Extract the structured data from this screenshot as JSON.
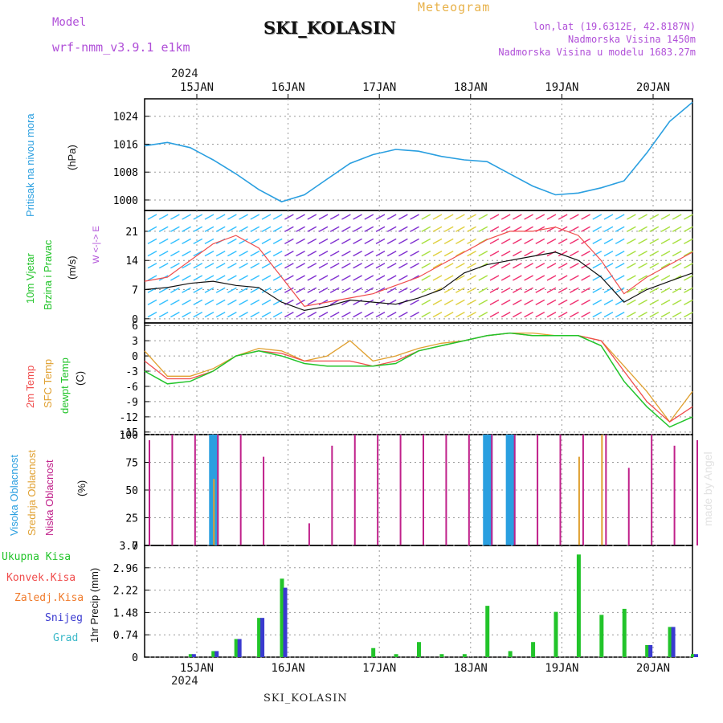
{
  "header": {
    "model_label": "Model",
    "model_name": "wrf-nmm_v3.9.1 e1km",
    "station": "SKI_KOLASIN",
    "meteogram_title": "Meteogram",
    "lonlat": "lon,lat (19.6312E, 42.8187N)",
    "elevation": "Nadmorska Visina 1450m",
    "elevation_model": "Nadmorska Visina u modelu 1683.27m",
    "year_top": "2024",
    "year_bottom": "2024",
    "footer_station": "SKI_KOLASIN",
    "watermark": "made by Angel"
  },
  "colors": {
    "pressure": "#2a9fe0",
    "wind_speed": "#111111",
    "wind_gust": "#f04c4c",
    "t2m": "#f04c4c",
    "sfc": "#e0a030",
    "dewpt": "#22c42a",
    "high_cloud": "#2a9fe0",
    "mid_cloud": "#e0a030",
    "low_cloud": "#c0208a",
    "total_precip": "#22c42a",
    "conv_precip": "#f04c4c",
    "freezing": "#f07a2a",
    "snow": "#3a3ad0",
    "graupel": "#3ab8c8"
  },
  "chart_data": [
    {
      "type": "line",
      "panel": "pressure",
      "ylabel_lines": [
        "Pritisak na nivou mora",
        "(hPa)"
      ],
      "x_ticks": [
        "15JAN",
        "16JAN",
        "17JAN",
        "18JAN",
        "19JAN",
        "20JAN"
      ],
      "yticks": [
        1000,
        1008,
        1016,
        1024
      ],
      "ylim": [
        997,
        1029
      ],
      "x_days": [
        0.0,
        0.25,
        0.5,
        0.75,
        1.0,
        1.25,
        1.5,
        1.75,
        2.0,
        2.25,
        2.5,
        2.75,
        3.0,
        3.25,
        3.5,
        3.75,
        4.0,
        4.25,
        4.5,
        4.75,
        5.0,
        5.25,
        5.5,
        5.75,
        6.0
      ],
      "series": [
        {
          "values": [
            1015.5,
            1016.5,
            1015.0,
            1011.5,
            1007.5,
            1003.0,
            999.5,
            1001.5,
            1006.0,
            1010.5,
            1013.0,
            1014.5,
            1014.0,
            1012.5,
            1011.5,
            1011.0,
            1007.5,
            1004.0,
            1001.5,
            1002.0,
            1003.5,
            1005.5,
            1013.5,
            1022.5,
            1028.0
          ]
        }
      ],
      "grid": true
    },
    {
      "type": "line",
      "panel": "wind",
      "ylabel_lines": [
        "10m Vjetar",
        "Brzina i Pravac",
        "(m/s)"
      ],
      "compass_label": "W <-|-> E",
      "yticks": [
        0,
        7,
        14,
        21
      ],
      "ylim": [
        -1,
        26
      ],
      "x_days": [
        0.0,
        0.25,
        0.5,
        0.75,
        1.0,
        1.25,
        1.5,
        1.75,
        2.0,
        2.25,
        2.5,
        2.75,
        3.0,
        3.25,
        3.5,
        3.75,
        4.0,
        4.25,
        4.5,
        4.75,
        5.0,
        5.25,
        5.5,
        5.75,
        6.0
      ],
      "series": [
        {
          "values": [
            7,
            7.5,
            8.5,
            9,
            8,
            7.5,
            4,
            2,
            3,
            4.5,
            4,
            3.5,
            5,
            7,
            11,
            13,
            14,
            15,
            16,
            14,
            10,
            4,
            7,
            9,
            11
          ]
        },
        {
          "values": [
            9,
            10,
            14,
            18,
            20,
            17,
            10,
            3,
            4,
            5,
            6,
            8,
            10,
            13,
            16,
            19,
            21,
            21,
            22,
            20,
            14,
            6,
            10,
            13,
            16
          ]
        }
      ],
      "grid": true
    },
    {
      "type": "line",
      "panel": "temperature",
      "ylabel_lines": [
        "2m Temp",
        "SFC Temp",
        "dewpt Temp",
        "(C)"
      ],
      "yticks": [
        -15,
        -12,
        -9,
        -6,
        -3,
        0,
        3,
        6
      ],
      "ylim": [
        -15.5,
        6.5
      ],
      "x_days": [
        0.0,
        0.25,
        0.5,
        0.75,
        1.0,
        1.25,
        1.5,
        1.75,
        2.0,
        2.25,
        2.5,
        2.75,
        3.0,
        3.25,
        3.5,
        3.75,
        4.0,
        4.25,
        4.5,
        4.75,
        5.0,
        5.25,
        5.5,
        5.75,
        6.0
      ],
      "series": [
        {
          "values": [
            -1,
            -4.5,
            -4.5,
            -3,
            0,
            1,
            0.5,
            -1,
            -1,
            -1,
            -2,
            -1,
            1,
            2,
            3,
            4,
            4.5,
            4,
            4,
            4,
            3,
            -3,
            -9,
            -13,
            -10
          ]
        },
        {
          "values": [
            1,
            -4,
            -4,
            -2.5,
            0,
            1.5,
            1,
            -1,
            0,
            3,
            -1,
            0,
            1.5,
            2.5,
            3,
            4,
            4.5,
            4.5,
            4,
            4,
            3,
            -2,
            -7,
            -13,
            -7
          ]
        },
        {
          "values": [
            -3,
            -5.5,
            -5,
            -3,
            0,
            1,
            0,
            -1.5,
            -2,
            -2,
            -2,
            -1.5,
            1,
            2,
            3,
            4,
            4.5,
            4,
            4,
            4,
            2,
            -5,
            -10,
            -14,
            -12
          ]
        }
      ],
      "grid": true
    },
    {
      "type": "bar",
      "panel": "clouds",
      "ylabel_lines": [
        "Visoka Oblacnost",
        "Srednja Oblacnost",
        "Niska Oblacnost",
        "(%)"
      ],
      "yticks": [
        0,
        25,
        50,
        75,
        100
      ],
      "ylim": [
        0,
        100
      ],
      "x_days": [
        0.0,
        0.25,
        0.5,
        0.75,
        1.0,
        1.25,
        1.5,
        1.75,
        2.0,
        2.25,
        2.5,
        2.75,
        3.0,
        3.25,
        3.5,
        3.75,
        4.0,
        4.25,
        4.5,
        4.75,
        5.0,
        5.25,
        5.5,
        5.75,
        6.0
      ],
      "series": [
        {
          "name": "Visoka Oblacnost",
          "values": [
            0,
            0,
            0,
            100,
            0,
            0,
            0,
            0,
            0,
            0,
            0,
            0,
            0,
            0,
            0,
            100,
            100,
            0,
            0,
            0,
            0,
            0,
            0,
            0,
            0
          ]
        },
        {
          "name": "Srednja Oblacnost",
          "values": [
            0,
            0,
            0,
            60,
            0,
            0,
            0,
            0,
            0,
            0,
            0,
            0,
            0,
            0,
            0,
            0,
            0,
            0,
            0,
            80,
            100,
            0,
            0,
            0,
            0
          ]
        },
        {
          "name": "Niska Oblacnost",
          "values": [
            95,
            100,
            100,
            100,
            100,
            80,
            0,
            20,
            90,
            100,
            100,
            100,
            100,
            100,
            100,
            100,
            100,
            100,
            100,
            100,
            100,
            70,
            100,
            90,
            95
          ]
        }
      ],
      "grid": true
    },
    {
      "type": "bar",
      "panel": "precip",
      "ylabel_lines": [
        "1hr Precip (mm)"
      ],
      "legend": [
        "Ukupna Kisa",
        "Konvek.Kisa",
        "Zaledj.Kisa",
        "Snijeg",
        "Grad"
      ],
      "yticks": [
        0,
        0.74,
        1.48,
        2.22,
        2.96,
        3.7
      ],
      "ylim": [
        0,
        3.7
      ],
      "x_ticks": [
        "15JAN",
        "16JAN",
        "17JAN",
        "18JAN",
        "19JAN",
        "20JAN"
      ],
      "x_days": [
        0.0,
        0.25,
        0.5,
        0.75,
        1.0,
        1.25,
        1.5,
        1.75,
        2.0,
        2.25,
        2.5,
        2.75,
        3.0,
        3.25,
        3.5,
        3.75,
        4.0,
        4.25,
        4.5,
        4.75,
        5.0,
        5.25,
        5.5,
        5.75,
        6.0
      ],
      "series": [
        {
          "name": "Ukupna Kisa",
          "values": [
            0,
            0,
            0.1,
            0.2,
            0.6,
            1.3,
            2.6,
            0,
            0,
            0,
            0.3,
            0.1,
            0.5,
            0.1,
            0.1,
            1.7,
            0.2,
            0.5,
            1.5,
            3.4,
            1.4,
            1.6,
            0.4,
            1.0,
            0.1
          ]
        },
        {
          "name": "Snijeg",
          "values": [
            0,
            0,
            0.1,
            0.2,
            0.6,
            1.3,
            2.3,
            0,
            0,
            0,
            0,
            0,
            0,
            0,
            0,
            0,
            0,
            0,
            0,
            0,
            0,
            0,
            0.4,
            1.0,
            0.1
          ]
        }
      ],
      "grid": true
    }
  ]
}
